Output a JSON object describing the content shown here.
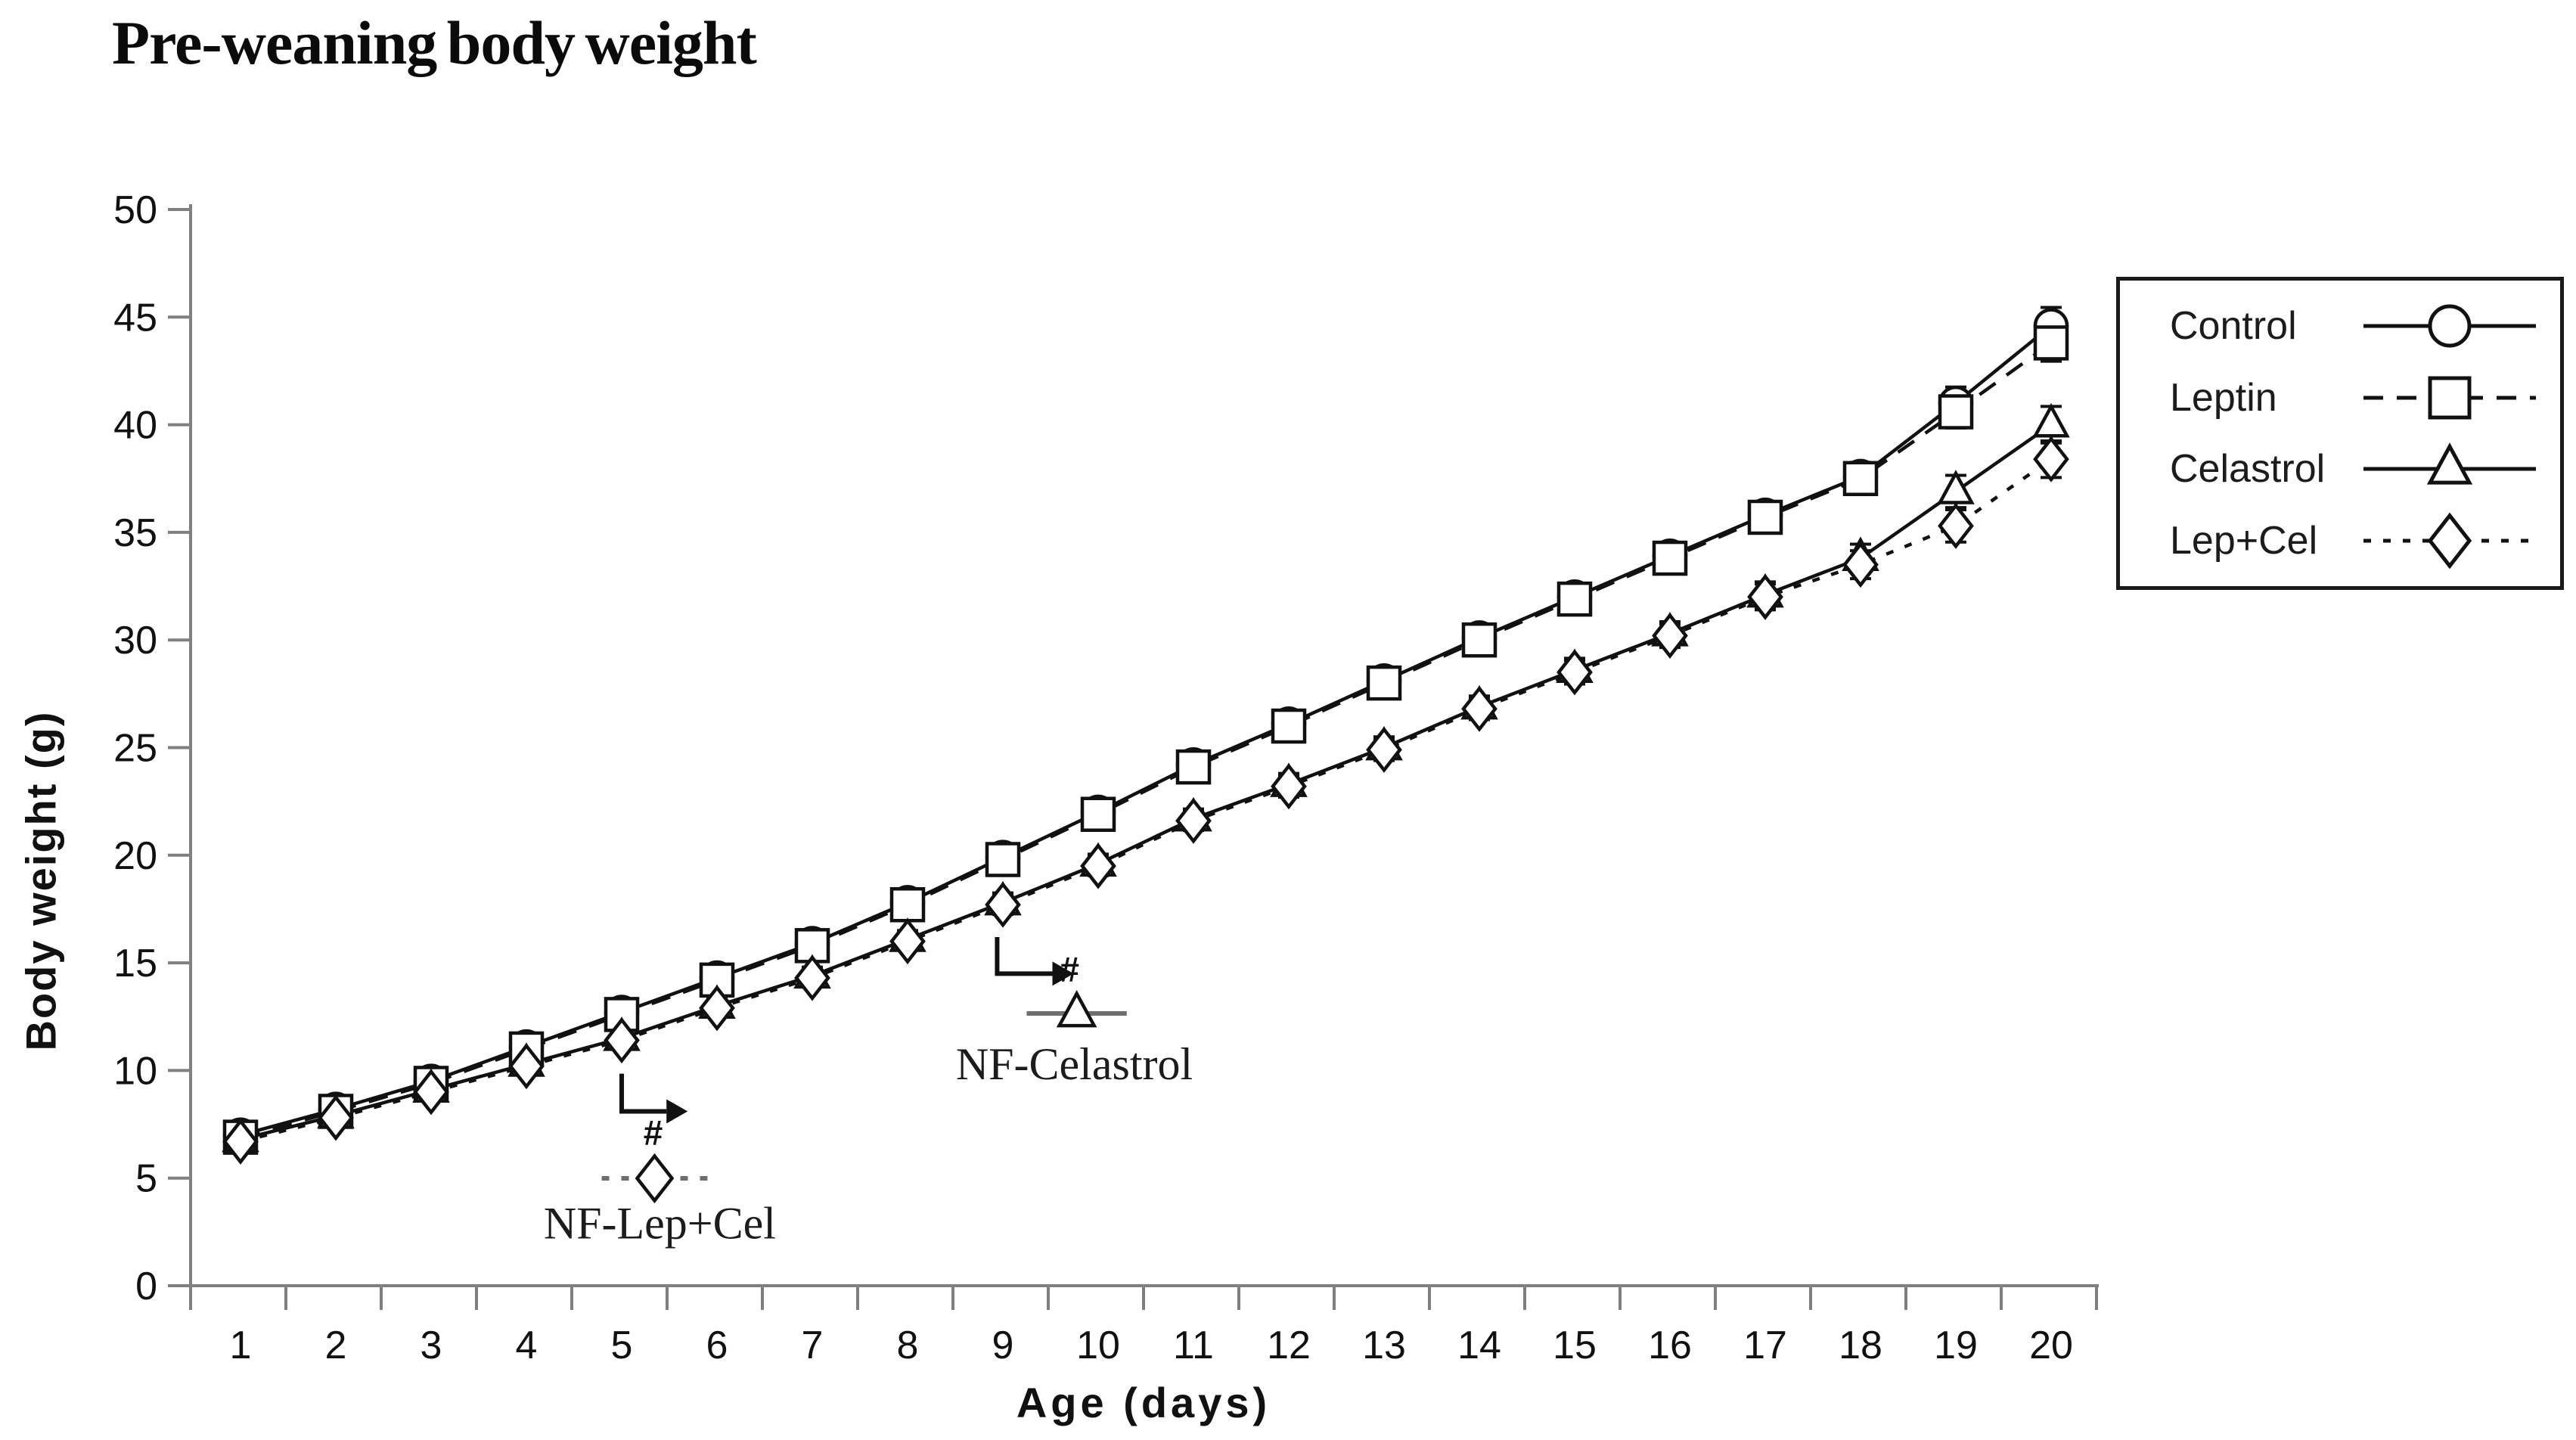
{
  "title": "Pre-weaning body weight",
  "colors": {
    "line": "#111111",
    "axis": "#808080",
    "marker_fill": "#ffffff",
    "annotation_line": "#6e6e6e",
    "text": "#111111"
  },
  "y_axis": {
    "label": "Body weight (g)",
    "ticks": [
      0,
      5,
      10,
      15,
      20,
      25,
      30,
      35,
      40,
      45,
      50
    ],
    "min": 0,
    "max": 50
  },
  "x_axis": {
    "label": "Age (days)",
    "ticks": [
      1,
      2,
      3,
      4,
      5,
      6,
      7,
      8,
      9,
      10,
      11,
      12,
      13,
      14,
      15,
      16,
      17,
      18,
      19,
      20
    ]
  },
  "legend": {
    "items": [
      {
        "label": "Control",
        "marker": "circle",
        "line_style": "solid"
      },
      {
        "label": "Leptin",
        "marker": "square",
        "line_style": "dashed"
      },
      {
        "label": "Celastrol",
        "marker": "triangle",
        "line_style": "solid"
      },
      {
        "label": "Lep+Cel",
        "marker": "diamond",
        "line_style": "short-dash"
      }
    ]
  },
  "chart_data": {
    "type": "line",
    "x": [
      1,
      2,
      3,
      4,
      5,
      6,
      7,
      8,
      9,
      10,
      11,
      12,
      13,
      14,
      15,
      16,
      17,
      18,
      19,
      20
    ],
    "xlabel": "Age (days)",
    "ylabel": "Body weight (g)",
    "ylim": [
      0,
      50
    ],
    "grid": false,
    "legend_position": "right-outside-box",
    "series": [
      {
        "name": "Control",
        "marker": "circle",
        "line_style": "solid",
        "values": [
          7.0,
          8.2,
          9.5,
          11.1,
          12.7,
          14.3,
          15.9,
          17.8,
          19.9,
          22.0,
          24.2,
          26.1,
          28.1,
          30.1,
          32.0,
          33.9,
          35.8,
          37.6,
          41.0,
          44.6
        ],
        "errors": [
          0.3,
          0.3,
          0.3,
          0.35,
          0.35,
          0.4,
          0.4,
          0.4,
          0.45,
          0.45,
          0.45,
          0.5,
          0.5,
          0.5,
          0.55,
          0.55,
          0.6,
          0.65,
          0.75,
          0.85
        ]
      },
      {
        "name": "Leptin",
        "marker": "square",
        "line_style": "dashed",
        "values": [
          6.9,
          8.1,
          9.4,
          11.0,
          12.6,
          14.2,
          15.8,
          17.7,
          19.8,
          21.9,
          24.1,
          26.0,
          28.0,
          30.0,
          31.9,
          33.8,
          35.7,
          37.5,
          40.6,
          43.8
        ],
        "errors": [
          0.3,
          0.3,
          0.3,
          0.35,
          0.35,
          0.4,
          0.4,
          0.4,
          0.45,
          0.45,
          0.45,
          0.5,
          0.5,
          0.5,
          0.55,
          0.55,
          0.6,
          0.65,
          0.75,
          0.85
        ]
      },
      {
        "name": "Celastrol",
        "marker": "triangle",
        "line_style": "solid",
        "values": [
          6.8,
          7.9,
          9.1,
          10.3,
          11.5,
          13.0,
          14.4,
          16.1,
          17.8,
          19.6,
          21.7,
          23.3,
          25.0,
          26.9,
          28.6,
          30.3,
          32.1,
          33.8,
          36.9,
          40.0
        ],
        "errors": [
          0.3,
          0.3,
          0.3,
          0.35,
          0.35,
          0.4,
          0.4,
          0.4,
          0.45,
          0.45,
          0.45,
          0.5,
          0.5,
          0.5,
          0.55,
          0.55,
          0.6,
          0.65,
          0.75,
          0.85
        ]
      },
      {
        "name": "Lep+Cel",
        "marker": "diamond",
        "line_style": "short-dash",
        "values": [
          6.7,
          7.8,
          9.0,
          10.2,
          11.4,
          12.9,
          14.3,
          16.0,
          17.7,
          19.5,
          21.6,
          23.2,
          24.9,
          26.8,
          28.5,
          30.2,
          32.0,
          33.5,
          35.3,
          38.4
        ],
        "errors": [
          0.3,
          0.3,
          0.3,
          0.35,
          0.35,
          0.4,
          0.4,
          0.4,
          0.45,
          0.45,
          0.45,
          0.5,
          0.5,
          0.5,
          0.55,
          0.55,
          0.6,
          0.65,
          0.75,
          0.85
        ]
      }
    ],
    "annotations": [
      {
        "label": "NF-Celastrol",
        "symbol": "#",
        "marker": "triangle",
        "line_style": "solid",
        "arrow": {
          "day": 8.94,
          "v_top": 16.2,
          "v_bottom": 14.5,
          "day_end": 9.52
        },
        "symbol_pos": {
          "day": 9.7,
          "v": 14.15
        },
        "sample_line": {
          "day_start": 9.25,
          "day_end": 10.3,
          "v": 12.65
        },
        "label_pos": {
          "day": 9.75,
          "v": 9.6
        }
      },
      {
        "label": "NF-Lep+Cel",
        "symbol": "#",
        "marker": "diamond",
        "line_style": "short-dash",
        "arrow": {
          "day": 5.0,
          "v_top": 9.85,
          "v_bottom": 8.1,
          "day_end": 5.47
        },
        "symbol_pos": {
          "day": 5.33,
          "v": 6.55
        },
        "sample_line": {
          "day_start": 4.79,
          "day_end": 5.9,
          "v": 4.99
        },
        "label_pos": {
          "day": 5.4,
          "v": 2.2
        }
      }
    ]
  }
}
